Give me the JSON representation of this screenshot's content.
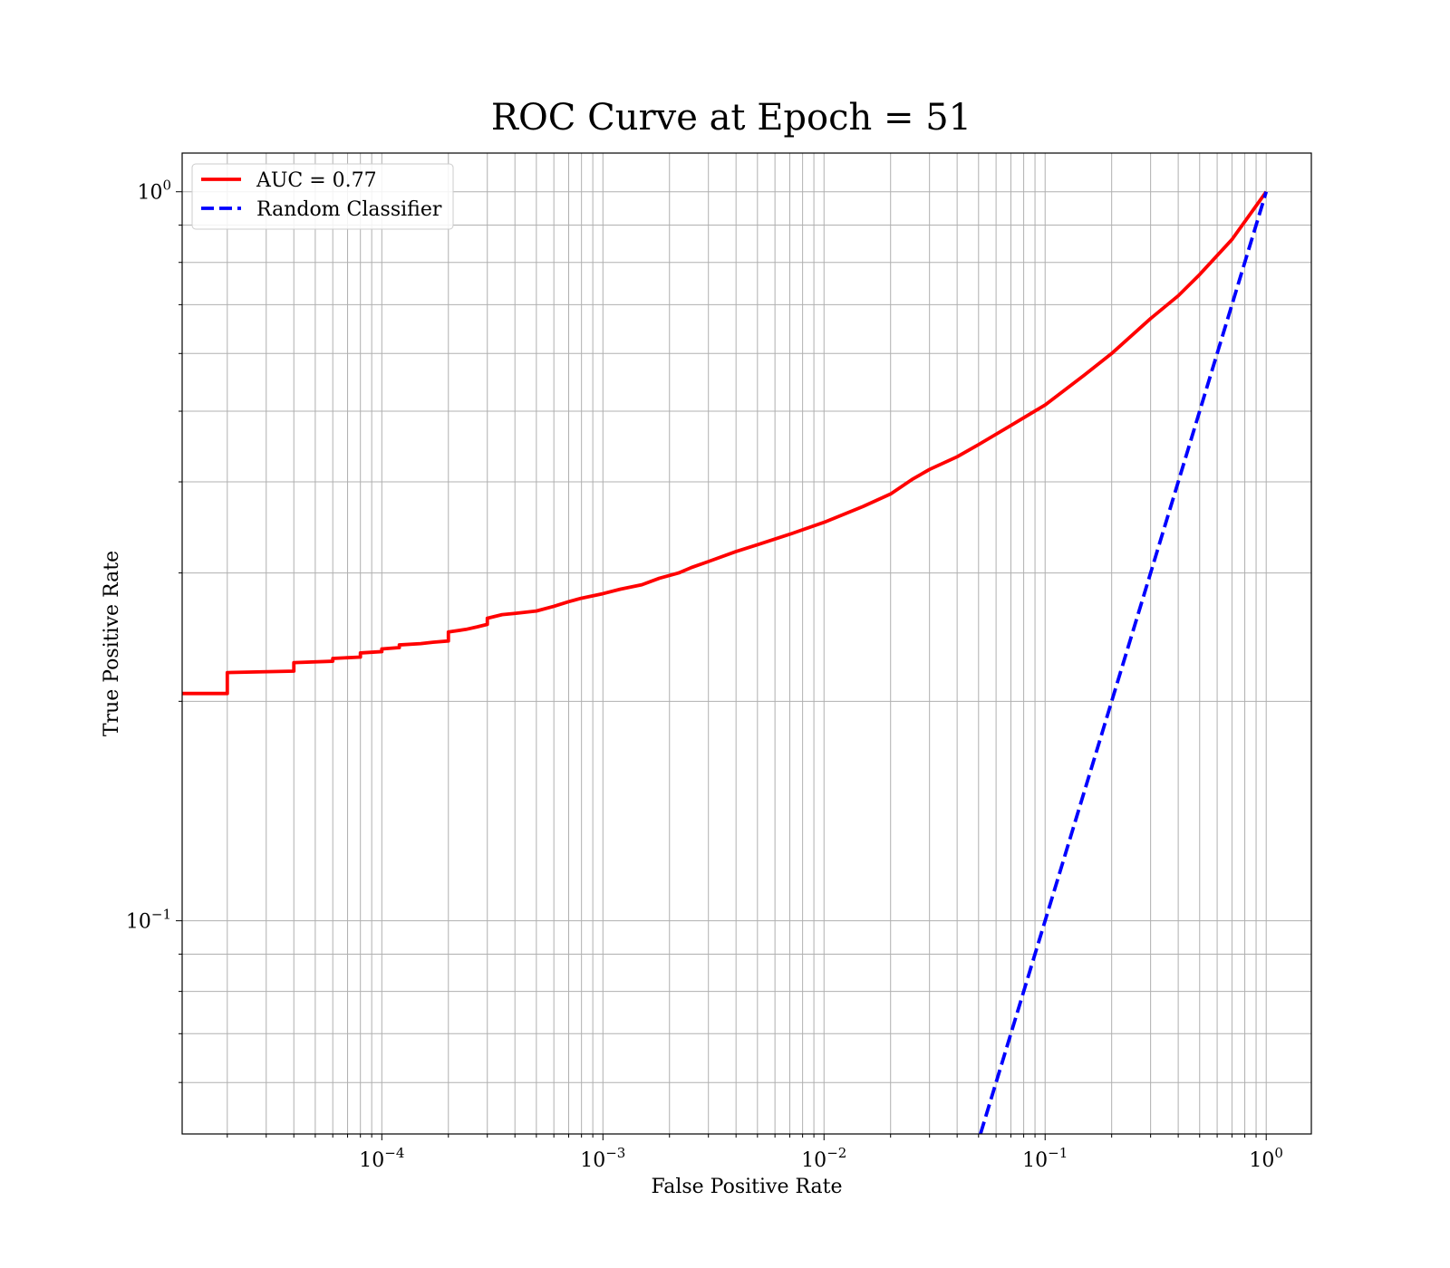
{
  "chart_data": {
    "type": "line",
    "title": "ROC Curve at Epoch = 51",
    "xlabel": "False Positive Rate",
    "ylabel": "True Positive Rate",
    "xscale": "log",
    "yscale": "log",
    "xlim": [
      1.25e-05,
      1.6
    ],
    "ylim": [
      0.051,
      1.13
    ],
    "grid": true,
    "grid_which": "both",
    "legend_position": "upper-left",
    "x_ticks": [
      {
        "base": "10",
        "exp": "−4"
      },
      {
        "base": "10",
        "exp": "−3"
      },
      {
        "base": "10",
        "exp": "−2"
      },
      {
        "base": "10",
        "exp": "−1"
      },
      {
        "base": "10",
        "exp": "0"
      }
    ],
    "y_ticks": [
      {
        "base": "10",
        "exp": "−1"
      },
      {
        "base": "10",
        "exp": "0"
      }
    ],
    "series": [
      {
        "name": "AUC = 0.77",
        "color": "#ff0000",
        "style": "solid",
        "x": [
          1.25e-05,
          2e-05,
          2e-05,
          4e-05,
          4e-05,
          6e-05,
          6e-05,
          8e-05,
          8e-05,
          0.0001,
          0.0001,
          0.00012,
          0.00012,
          0.00015,
          0.00017,
          0.0002,
          0.0002,
          0.00024,
          0.00027,
          0.0003,
          0.0003,
          0.00035,
          0.0004,
          0.0005,
          0.0006,
          0.0007,
          0.0008,
          0.001,
          0.0012,
          0.0015,
          0.0018,
          0.0022,
          0.0025,
          0.003,
          0.004,
          0.005,
          0.007,
          0.01,
          0.015,
          0.02,
          0.025,
          0.03,
          0.04,
          0.05,
          0.07,
          0.1,
          0.15,
          0.2,
          0.3,
          0.4,
          0.5,
          0.7,
          1.0
        ],
        "y": [
          0.205,
          0.205,
          0.219,
          0.22,
          0.226,
          0.227,
          0.229,
          0.23,
          0.233,
          0.234,
          0.236,
          0.237,
          0.239,
          0.24,
          0.241,
          0.242,
          0.249,
          0.251,
          0.253,
          0.255,
          0.26,
          0.263,
          0.264,
          0.266,
          0.27,
          0.274,
          0.277,
          0.281,
          0.285,
          0.289,
          0.295,
          0.3,
          0.305,
          0.311,
          0.321,
          0.328,
          0.339,
          0.352,
          0.37,
          0.385,
          0.403,
          0.416,
          0.433,
          0.45,
          0.478,
          0.51,
          0.56,
          0.6,
          0.67,
          0.72,
          0.77,
          0.86,
          1.0
        ]
      },
      {
        "name": "Random Classifier",
        "color": "#0000ff",
        "style": "dashed",
        "x": [
          0.051,
          1.0
        ],
        "y": [
          0.051,
          1.0
        ]
      }
    ]
  }
}
